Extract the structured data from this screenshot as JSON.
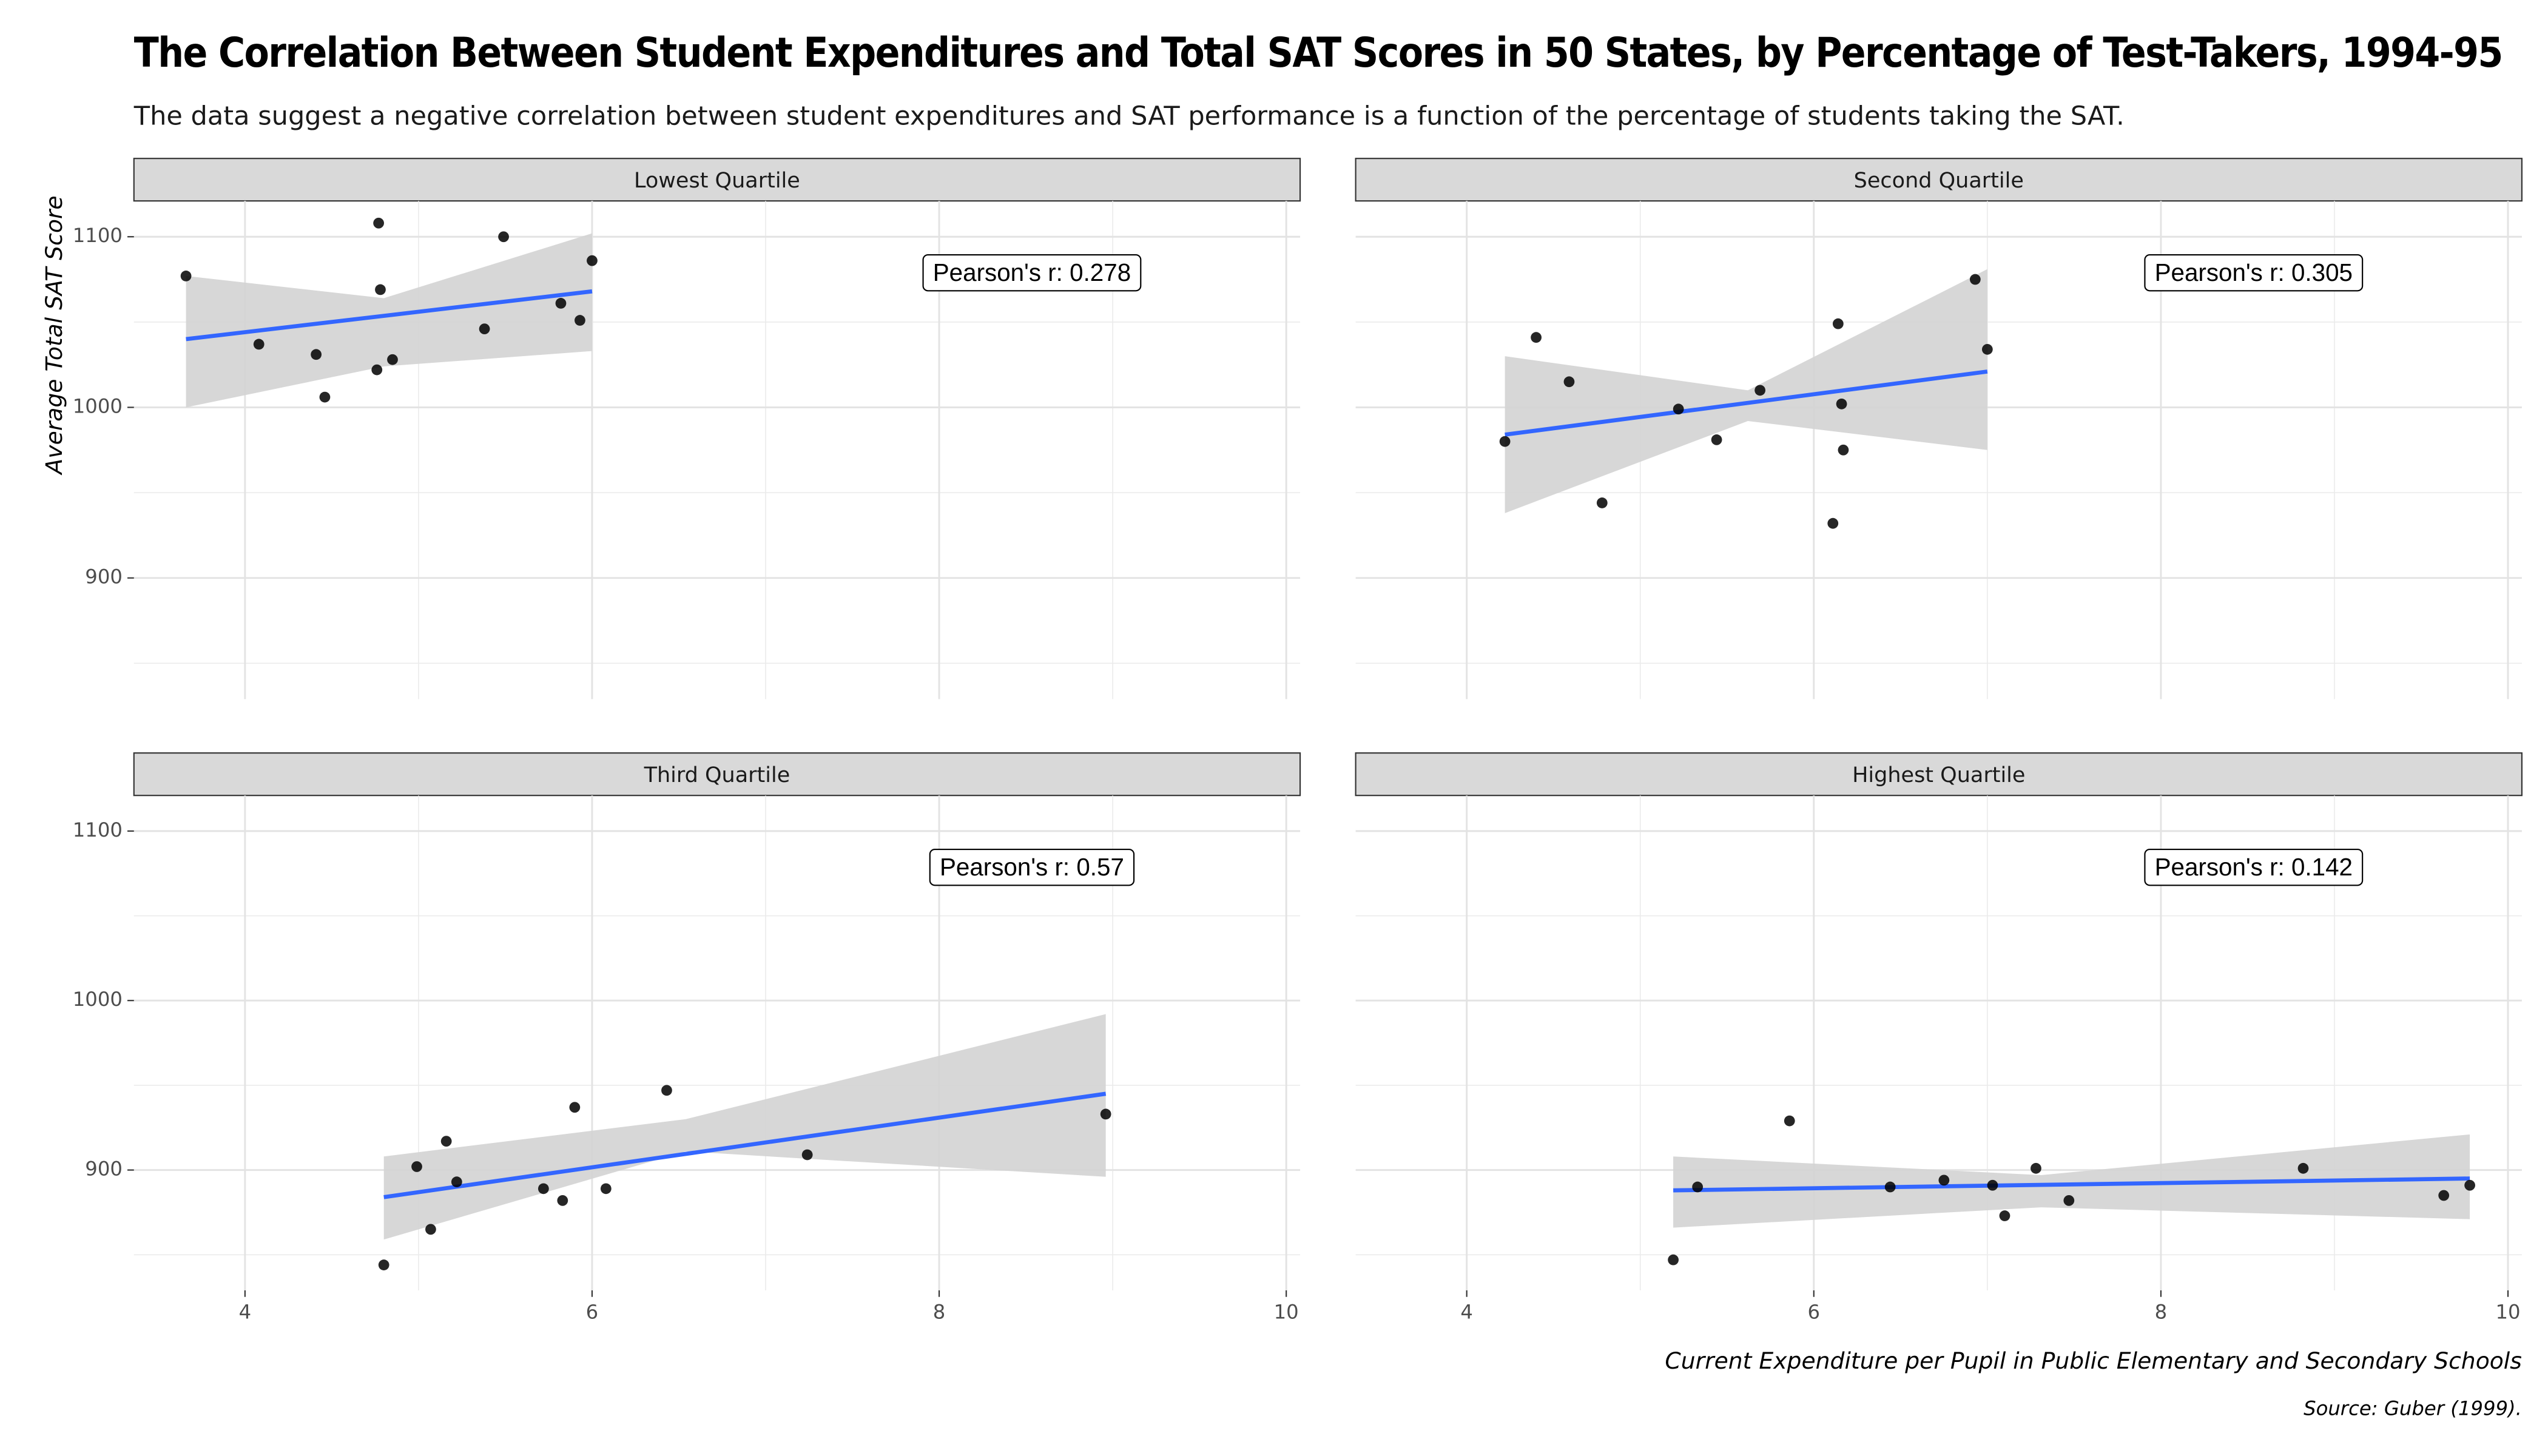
{
  "title": "The Correlation Between Student Expenditures and Total SAT Scores in 50 States, by Percentage of Test-Takers, 1994-95",
  "subtitle": "The data suggest a negative correlation between student expenditures and SAT performance is a function of the percentage of students taking the SAT.",
  "x_label": "Current Expenditure per Pupil in Public Elementary and Secondary Schools",
  "y_label": "Average Total SAT Score",
  "caption": "Source: Guber (1999).",
  "chart_data": [
    {
      "type": "scatter",
      "title": "Lowest Quartile",
      "annotation": "Pearson's r: 0.278",
      "color": "#000000",
      "fit_color": "#3366ff",
      "band_color": "#d3d3d3",
      "x": [
        3.66,
        4.08,
        4.41,
        4.46,
        4.77,
        4.78,
        4.76,
        4.85,
        5.38,
        5.49,
        5.82,
        5.93,
        6.0
      ],
      "y": [
        1077,
        1037,
        1031,
        1006,
        1108,
        1069,
        1022,
        1028,
        1046,
        1100,
        1061,
        1051,
        1086
      ],
      "fit": {
        "x": [
          3.66,
          6.0
        ],
        "y": [
          1040,
          1068
        ]
      },
      "band": {
        "x": [
          3.66,
          4.8,
          6.0
        ],
        "upper": [
          1077,
          1064,
          1102
        ],
        "lower": [
          1000,
          1024,
          1033
        ]
      },
      "xlim": [
        3.36,
        10.08
      ],
      "ylim": [
        829,
        1121
      ],
      "xticks": [
        4,
        6,
        8,
        10
      ],
      "yticks": [
        900,
        1000,
        1100
      ]
    },
    {
      "type": "scatter",
      "title": "Second Quartile",
      "annotation": "Pearson's r: 0.305",
      "color": "#000000",
      "fit_color": "#3366ff",
      "band_color": "#d3d3d3",
      "x": [
        4.22,
        4.4,
        4.59,
        4.78,
        5.22,
        5.44,
        5.69,
        6.14,
        6.16,
        6.17,
        6.11,
        6.93,
        7.0
      ],
      "y": [
        980,
        1041,
        1015,
        944,
        999,
        981,
        1010,
        1049,
        1002,
        975,
        932,
        1075,
        1034
      ],
      "fit": {
        "x": [
          4.22,
          7.0
        ],
        "y": [
          984,
          1021
        ]
      },
      "band": {
        "x": [
          4.22,
          5.62,
          7.0
        ],
        "upper": [
          1030,
          1010,
          1081
        ],
        "lower": [
          938,
          992,
          975
        ]
      },
      "xlim": [
        3.36,
        10.08
      ],
      "ylim": [
        829,
        1121
      ],
      "xticks": [
        4,
        6,
        8,
        10
      ],
      "yticks": [
        900,
        1000,
        1100
      ]
    },
    {
      "type": "scatter",
      "title": "Third Quartile",
      "annotation": "Pearson's r: 0.57",
      "color": "#000000",
      "fit_color": "#3366ff",
      "band_color": "#d3d3d3",
      "x": [
        4.8,
        4.99,
        5.07,
        5.16,
        5.22,
        5.72,
        5.83,
        5.9,
        6.08,
        6.43,
        7.24,
        8.96
      ],
      "y": [
        844,
        902,
        865,
        917,
        893,
        889,
        882,
        937,
        889,
        947,
        909,
        933
      ],
      "fit": {
        "x": [
          4.8,
          8.96
        ],
        "y": [
          884,
          945
        ]
      },
      "band": {
        "x": [
          4.8,
          6.54,
          8.96
        ],
        "upper": [
          908,
          930,
          992
        ],
        "lower": [
          859,
          911,
          896
        ]
      },
      "xlim": [
        3.36,
        10.08
      ],
      "ylim": [
        829,
        1121
      ],
      "xticks": [
        4,
        6,
        8,
        10
      ],
      "yticks": [
        900,
        1000,
        1100
      ]
    },
    {
      "type": "scatter",
      "title": "Highest Quartile",
      "annotation": "Pearson's r: 0.142",
      "color": "#000000",
      "fit_color": "#3366ff",
      "band_color": "#d3d3d3",
      "x": [
        5.19,
        5.33,
        5.86,
        6.44,
        6.75,
        7.03,
        7.1,
        7.28,
        7.47,
        8.82,
        9.63,
        9.78
      ],
      "y": [
        847,
        890,
        929,
        890,
        894,
        891,
        873,
        901,
        882,
        901,
        885,
        891
      ],
      "fit": {
        "x": [
          5.19,
          9.78
        ],
        "y": [
          888,
          895
        ]
      },
      "band": {
        "x": [
          5.19,
          7.31,
          9.78
        ],
        "upper": [
          908,
          897,
          921
        ],
        "lower": [
          866,
          878,
          871
        ]
      },
      "xlim": [
        3.36,
        10.08
      ],
      "ylim": [
        829,
        1121
      ],
      "xticks": [
        4,
        6,
        8,
        10
      ],
      "yticks": [
        900,
        1000,
        1100
      ]
    }
  ]
}
